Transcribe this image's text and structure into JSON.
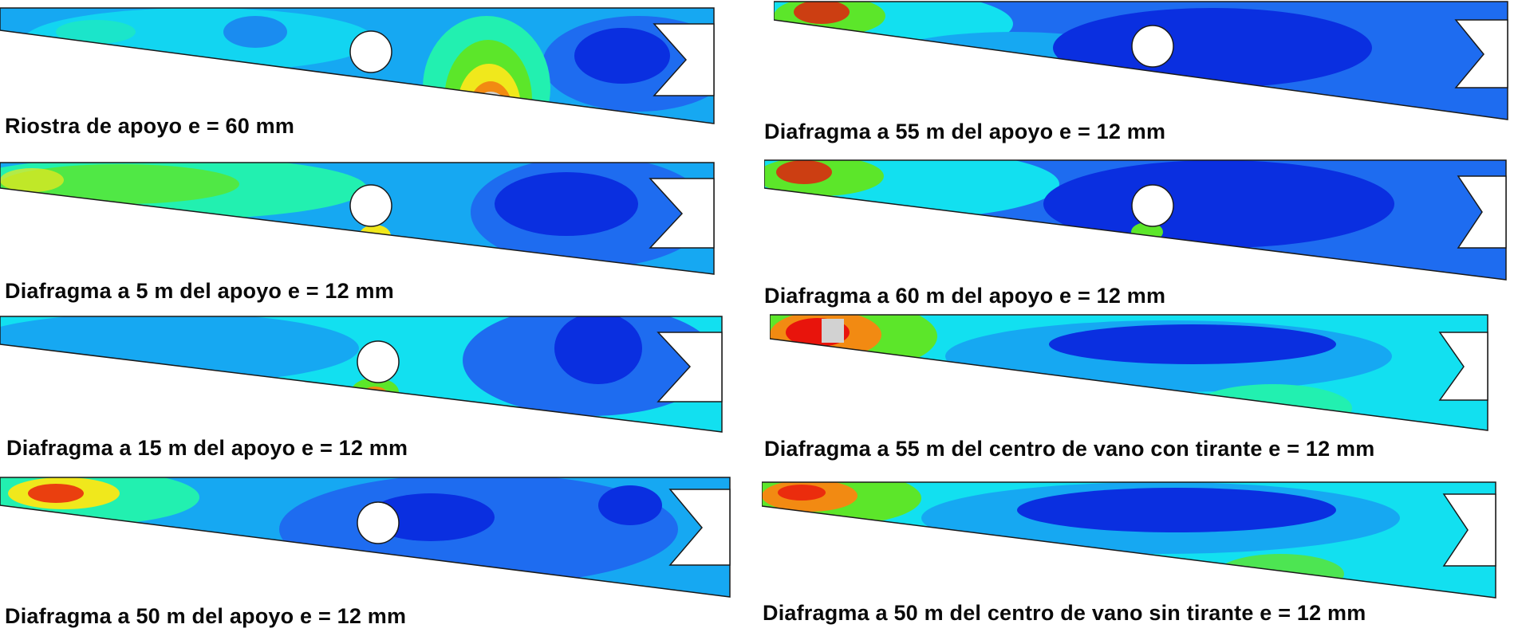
{
  "panels": [
    {
      "caption": "Riostra de apoyo e = 60 mm"
    },
    {
      "caption": "Diafragma a 5 m  del apoyo  e = 12 mm"
    },
    {
      "caption": "Diafragma a 15 m  del apoyo  e = 12 mm"
    },
    {
      "caption": "Diafragma a 50 m  del apoyo  e = 12 mm"
    },
    {
      "caption": "Diafragma a 55 m  del apoyo  e = 12 mm"
    },
    {
      "caption": "Diafragma a 60 m  del apoyo  e = 12 mm"
    },
    {
      "caption": "Diafragma a 55 m  del centro de vano con tirante e = 12 mm"
    },
    {
      "caption": "Diafragma a 50 m  del centro de vano sin tirante e = 12 mm"
    }
  ],
  "colors": {
    "deep_blue": "#0a2fe0",
    "blue": "#1e6cf0",
    "light_blue": "#16a8f2",
    "cyan": "#12e0f0",
    "green_cyan": "#22f0b0",
    "green": "#5ce62a",
    "yellow": "#f0e81c",
    "orange": "#f28a12",
    "red": "#e8140c",
    "grey": "#d2d2d2",
    "outline": "#1a1a1a"
  }
}
